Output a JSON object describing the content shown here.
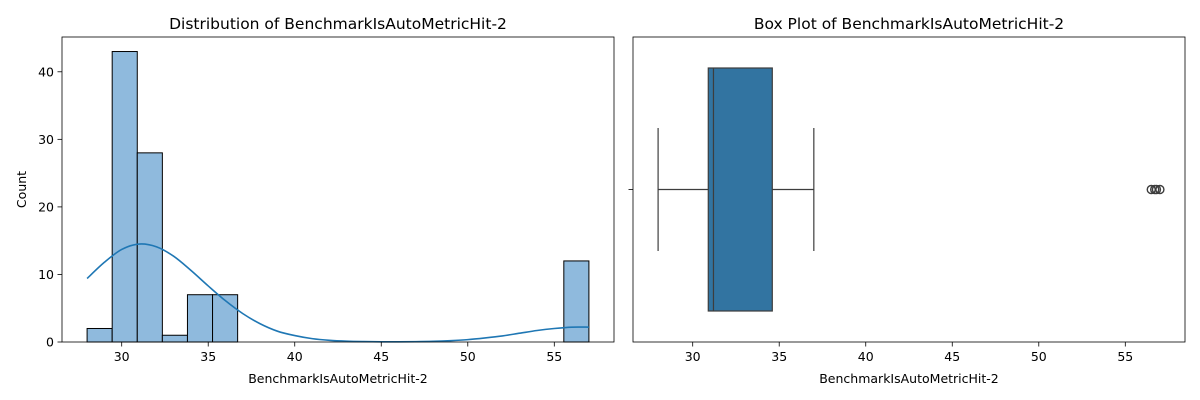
{
  "chart_data": [
    {
      "type": "bar",
      "subtype": "histogram-with-kde",
      "title": "Distribution of BenchmarkIsAutoMetricHit-2",
      "xlabel": "BenchmarkIsAutoMetricHit-2",
      "ylabel": "Count",
      "xlim": [
        26.55,
        58.45
      ],
      "ylim": [
        0,
        45.15
      ],
      "xticks": [
        30,
        35,
        40,
        45,
        50,
        55
      ],
      "yticks": [
        0,
        10,
        20,
        30,
        40
      ],
      "bins": [
        {
          "x0": 28.0,
          "x1": 29.45,
          "count": 2
        },
        {
          "x0": 29.45,
          "x1": 30.9,
          "count": 43
        },
        {
          "x0": 30.9,
          "x1": 32.35,
          "count": 28
        },
        {
          "x0": 32.35,
          "x1": 33.8,
          "count": 1
        },
        {
          "x0": 33.8,
          "x1": 35.25,
          "count": 7
        },
        {
          "x0": 35.25,
          "x1": 36.7,
          "count": 7
        },
        {
          "x0": 55.55,
          "x1": 57.0,
          "count": 12
        }
      ],
      "kde": {
        "x": [
          28,
          29,
          30,
          31,
          32,
          33,
          34,
          35,
          36,
          37,
          38,
          39,
          40,
          41,
          42,
          43,
          44,
          45,
          46,
          47,
          48,
          49,
          50,
          51,
          52,
          53,
          54,
          55,
          56,
          57
        ],
        "y": [
          9.4,
          11.8,
          13.7,
          14.5,
          14.1,
          12.7,
          10.6,
          8.3,
          6.1,
          4.2,
          2.7,
          1.6,
          0.95,
          0.5,
          0.25,
          0.12,
          0.06,
          0.03,
          0.03,
          0.05,
          0.1,
          0.2,
          0.35,
          0.6,
          0.9,
          1.3,
          1.7,
          2.0,
          2.2,
          2.2
        ]
      }
    },
    {
      "type": "box",
      "title": "Box Plot of BenchmarkIsAutoMetricHit-2",
      "xlabel": "BenchmarkIsAutoMetricHit-2",
      "xlim": [
        26.55,
        58.45
      ],
      "xticks": [
        30,
        35,
        40,
        45,
        50,
        55
      ],
      "whisker_low": 28.0,
      "q1": 30.9,
      "median": 31.2,
      "q3": 34.6,
      "whisker_high": 37.0,
      "outliers": [
        56.5,
        56.7,
        56.8,
        57.0
      ]
    }
  ]
}
